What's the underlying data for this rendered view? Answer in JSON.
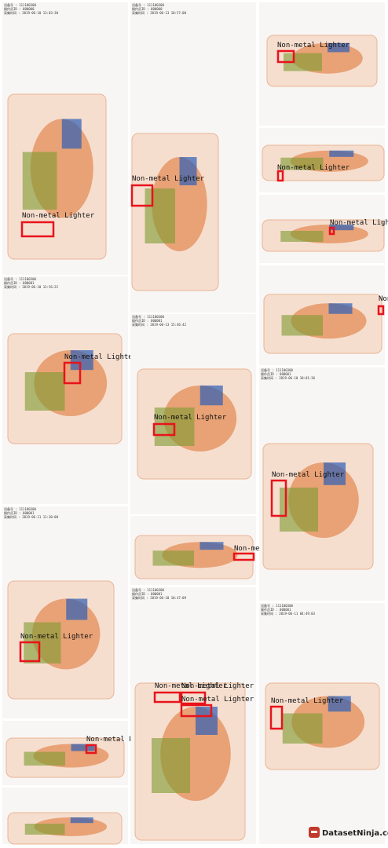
{
  "tiles": [
    {
      "header": [
        "设备号 : 111100300",
        "操作员ID : 000000",
        "采集时间 : 2019-06-10 13:03:30"
      ],
      "labels": [
        "Non-metal Lighter"
      ]
    },
    {
      "header": [
        "设备号 : 111100300",
        "操作员ID : 000001",
        "采集时间 : 2019-06-10 12:56:22"
      ],
      "labels": [
        "Non-metal Lighter"
      ]
    },
    {
      "header": [
        "设备号 : 111100300",
        "操作员ID : 000001",
        "采集时间 : 2019-06-11 11:30:08"
      ],
      "labels": [
        "Non-metal Lighter"
      ]
    },
    {
      "header": [],
      "labels": [
        "Non-metal Lighter"
      ]
    },
    {
      "header": [],
      "labels": []
    },
    {
      "header": [
        "设备号 : 111100300",
        "操作员ID : 000000",
        "采集时间 : 2019-06-13 10:57:00"
      ],
      "labels": [
        "Non-metal Lighter"
      ]
    },
    {
      "header": [
        "设备号 : 111100300",
        "操作员ID : 000001",
        "采集时间 : 2019-06-13 15:46:42"
      ],
      "labels": [
        "Non-metal Lighter"
      ]
    },
    {
      "header": [],
      "labels": [
        "Non-metal Lighter"
      ]
    },
    {
      "header": [
        "设备号 : 111100300",
        "操作员ID : 000001",
        "采集时间 : 2019-06-10 10:47:09"
      ],
      "labels": [
        "Non-metal Lighter",
        "Non-metal Lighter",
        "Non-metal Lighter"
      ]
    },
    {
      "header": [],
      "labels": [
        "Non-metal Lighter"
      ]
    },
    {
      "header": [],
      "labels": [
        "Non-metal Lighter"
      ]
    },
    {
      "header": [],
      "labels": [
        "Non-metal Lighter"
      ]
    },
    {
      "header": [],
      "labels": [
        "Non-metal Lighter"
      ]
    },
    {
      "header": [
        "设备号 : 111100300",
        "操作员ID : 000001",
        "采集时间 : 2019-06-10 10:01:36"
      ],
      "labels": [
        "Non-metal Lighter"
      ]
    },
    {
      "header": [
        "设备号 : 111100300",
        "操作员ID : 000001",
        "采集时间 : 2019-06-11 04:49:03"
      ],
      "labels": [
        "Non-metal Lighter"
      ]
    }
  ],
  "brand": "DatasetNinja.com"
}
